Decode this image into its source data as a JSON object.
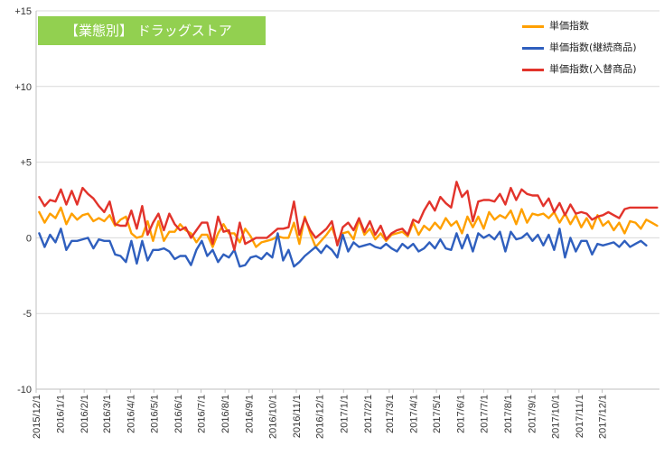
{
  "chart_data": {
    "type": "line",
    "title": "【業態別】 ドラッグストア",
    "xlabel": "",
    "ylabel": "",
    "ylim": [
      -10,
      15
    ],
    "y_ticks": [
      {
        "value": 15,
        "label": "+15"
      },
      {
        "value": 10,
        "label": "+10"
      },
      {
        "value": 5,
        "label": "+5"
      },
      {
        "value": 0,
        "label": "0"
      },
      {
        "value": -5,
        "label": "-5"
      },
      {
        "value": -10,
        "label": "-10"
      }
    ],
    "x_tick_labels": [
      "2015/12/1",
      "2016/1/1",
      "2016/2/1",
      "2016/3/1",
      "2016/4/1",
      "2016/5/1",
      "2016/6/1",
      "2016/7/1",
      "2016/8/1",
      "2016/9/1",
      "2016/10/1",
      "2016/11/1",
      "2016/12/1",
      "2017/1/1",
      "2017/2/1",
      "2017/3/1",
      "2017/4/1",
      "2017/5/1",
      "2017/6/1",
      "2017/7/1",
      "2017/8/1",
      "2017/9/1",
      "2017/10/1",
      "2017/11/1",
      "2017/12/1"
    ],
    "x_start": "2015-12-01",
    "grid": "horizontal",
    "legend_position": "top-right",
    "series": [
      {
        "name": "単価指数",
        "color": "#ffa000",
        "values": [
          1.7,
          1.0,
          1.6,
          1.3,
          2.0,
          0.9,
          1.6,
          1.2,
          1.5,
          1.6,
          1.1,
          1.3,
          1.1,
          1.5,
          0.8,
          1.2,
          1.4,
          0.3,
          0.0,
          0.1,
          1.1,
          -0.2,
          1.1,
          -0.2,
          0.4,
          0.4,
          0.9,
          0.5,
          0.3,
          -0.3,
          0.2,
          0.2,
          -0.6,
          0.3,
          0.9,
          0.3,
          0.3,
          -0.3,
          0.6,
          0.1,
          -0.6,
          -0.3,
          -0.2,
          -0.1,
          0.1,
          0.0,
          0.0,
          1.0,
          -0.4,
          1.4,
          0.3,
          -0.6,
          -0.2,
          0.2,
          0.7,
          -0.3,
          0.3,
          0.4,
          -0.1,
          1.2,
          0.2,
          0.6,
          -0.1,
          0.3,
          -0.2,
          0.2,
          0.3,
          0.4,
          0.1,
          1.0,
          0.2,
          0.8,
          0.5,
          1.0,
          0.6,
          1.3,
          0.8,
          1.1,
          0.3,
          1.4,
          0.7,
          1.4,
          0.6,
          1.7,
          1.2,
          1.5,
          1.3,
          1.8,
          0.9,
          1.9,
          1.0,
          1.6,
          1.5,
          1.6,
          1.3,
          1.7,
          1.0,
          1.6,
          0.9,
          1.5,
          0.7,
          1.3,
          0.6,
          1.5,
          0.8,
          1.1,
          0.5,
          1.0,
          0.3,
          1.1,
          1.0,
          0.6,
          1.2,
          1.0,
          0.8
        ]
      },
      {
        "name": "単価指数(継続商品)",
        "color": "#2f5fbe",
        "values": [
          0.3,
          -0.6,
          0.2,
          -0.3,
          0.6,
          -0.8,
          -0.2,
          -0.2,
          -0.1,
          0.0,
          -0.7,
          -0.1,
          -0.2,
          -0.2,
          -1.1,
          -1.2,
          -1.6,
          -0.2,
          -1.7,
          -0.2,
          -1.5,
          -0.8,
          -0.8,
          -0.7,
          -0.9,
          -1.4,
          -1.2,
          -1.2,
          -1.8,
          -0.8,
          -0.2,
          -1.2,
          -0.8,
          -1.6,
          -1.1,
          -1.3,
          -0.8,
          -1.9,
          -1.8,
          -1.3,
          -1.2,
          -1.4,
          -1.0,
          -1.3,
          0.3,
          -1.5,
          -0.8,
          -1.9,
          -1.6,
          -1.2,
          -0.9,
          -0.6,
          -1.0,
          -0.5,
          -0.8,
          -1.3,
          0.2,
          -0.9,
          -0.3,
          -0.6,
          -0.5,
          -0.4,
          -0.6,
          -0.7,
          -0.4,
          -0.7,
          -0.9,
          -0.4,
          -0.7,
          -0.4,
          -0.9,
          -0.7,
          -0.3,
          -0.7,
          -0.1,
          -0.7,
          -0.8,
          0.3,
          -0.7,
          0.2,
          -0.9,
          0.3,
          0.0,
          0.2,
          -0.1,
          0.4,
          -0.9,
          0.4,
          -0.1,
          0.0,
          0.3,
          -0.2,
          0.2,
          -0.5,
          0.2,
          -0.8,
          0.6,
          -1.3,
          0.0,
          -0.9,
          -0.2,
          -0.2,
          -1.1,
          -0.4,
          -0.5,
          -0.4,
          -0.3,
          -0.6,
          -0.2,
          -0.6,
          -0.4,
          -0.2,
          -0.5
        ]
      },
      {
        "name": "単価指数(入替商品)",
        "color": "#e2332b",
        "values": [
          2.7,
          2.1,
          2.5,
          2.4,
          3.2,
          2.2,
          3.1,
          2.2,
          3.3,
          2.9,
          2.6,
          2.1,
          1.7,
          2.4,
          0.9,
          0.8,
          0.8,
          1.8,
          0.6,
          2.1,
          0.2,
          1.0,
          1.6,
          0.5,
          1.6,
          0.9,
          0.5,
          0.7,
          0.0,
          0.5,
          1.0,
          1.0,
          -0.4,
          1.4,
          0.4,
          0.5,
          -0.8,
          1.0,
          -0.4,
          -0.2,
          0.0,
          0.0,
          0.0,
          0.3,
          0.6,
          0.6,
          0.7,
          2.4,
          0.2,
          1.3,
          0.5,
          0.0,
          0.3,
          0.6,
          1.1,
          -0.5,
          0.7,
          1.0,
          0.5,
          1.3,
          0.4,
          1.1,
          0.2,
          0.8,
          -0.1,
          0.3,
          0.5,
          0.6,
          0.2,
          1.2,
          1.0,
          1.8,
          2.4,
          1.8,
          2.7,
          2.3,
          2.0,
          3.7,
          2.7,
          3.1,
          1.1,
          2.4,
          2.5,
          2.5,
          2.4,
          2.9,
          2.2,
          3.3,
          2.5,
          3.2,
          2.9,
          2.8,
          2.8,
          2.1,
          2.6,
          1.7,
          2.3,
          1.5,
          2.2,
          1.6,
          1.7,
          1.6,
          1.2,
          1.4,
          1.5,
          1.7,
          1.5,
          1.3,
          1.9,
          2.0,
          2.0,
          2.0,
          2.0,
          2.0,
          2.0
        ]
      }
    ]
  }
}
